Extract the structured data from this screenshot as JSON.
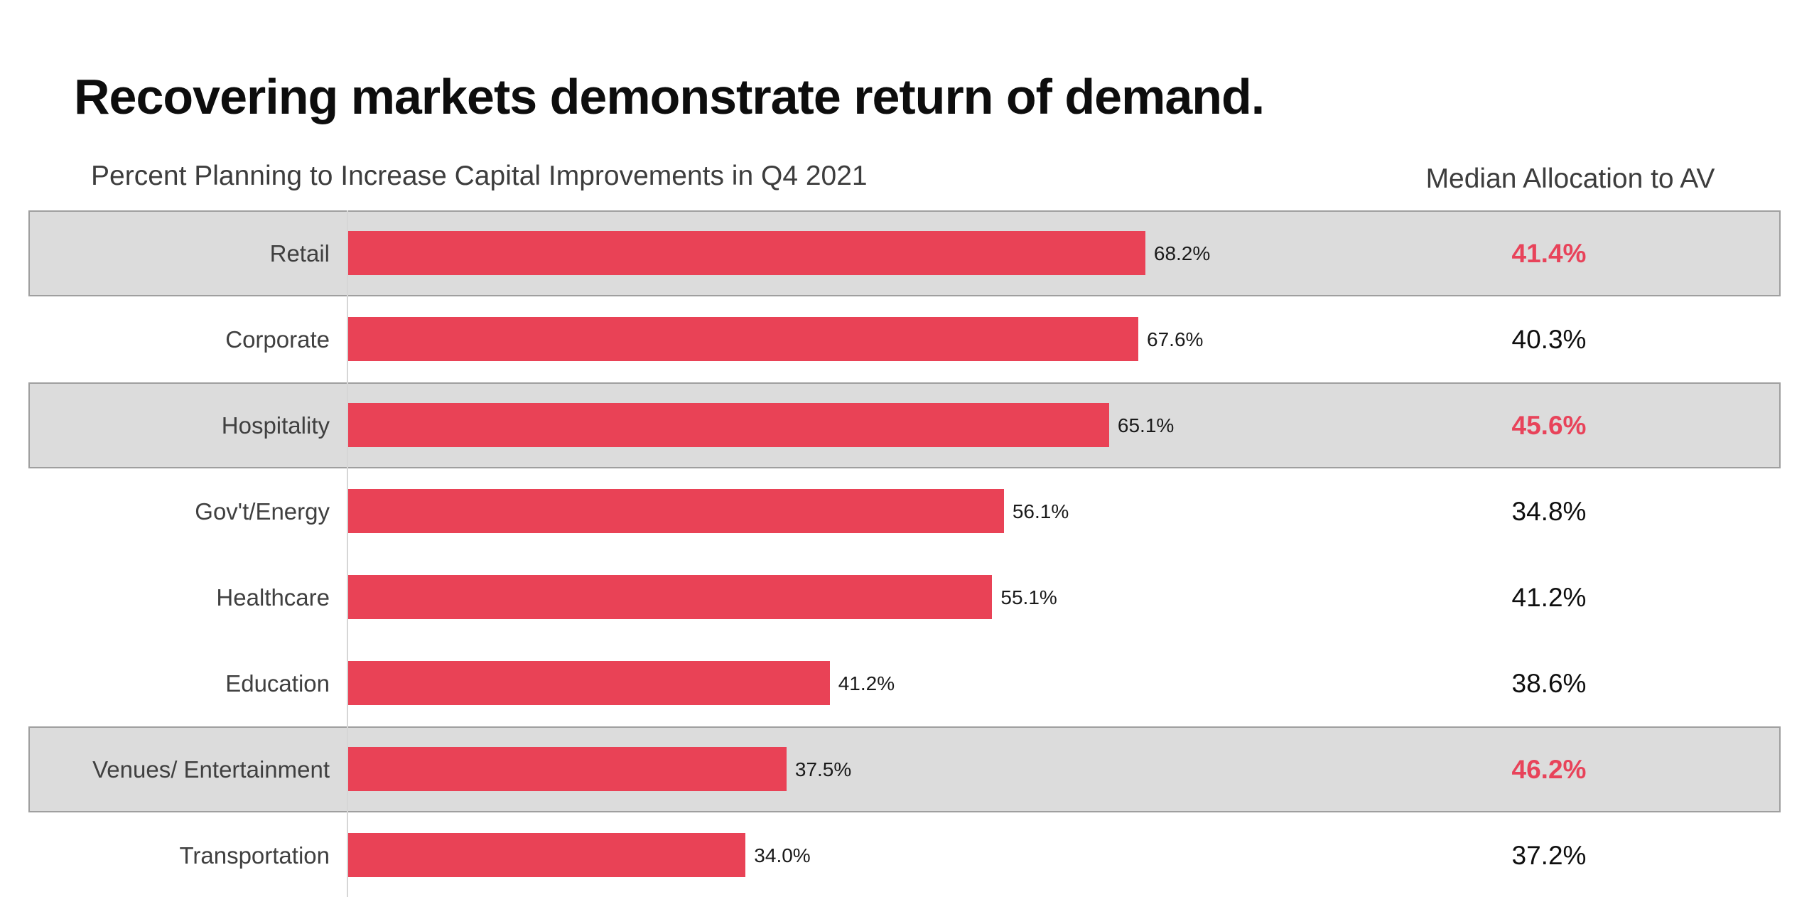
{
  "page": {
    "title": "Recovering markets demonstrate return of demand.",
    "left_header": "Percent Planning to Increase Capital Improvements in Q4 2021",
    "right_header": "Median Allocation to AV"
  },
  "colors": {
    "bar_red": "#E94256",
    "highlight_band_bg": "#DCDCDC",
    "highlight_band_border": "#9F9F9F",
    "highlight_text_red": "#E8435A",
    "title_text": "#0D0D0D",
    "header_text": "#3D3D3D",
    "category_text": "#404040",
    "value_text": "#1A1A1A",
    "axis_line": "#D6D6D6"
  },
  "chart_data": {
    "type": "bar",
    "orientation": "horizontal",
    "title": "Recovering markets demonstrate return of demand.",
    "subtitle_left": "Percent Planning to Increase Capital Improvements in Q4 2021",
    "subtitle_right": "Median Allocation to AV",
    "categories": [
      "Retail",
      "Corporate",
      "Hospitality",
      "Gov't/Energy",
      "Healthcare",
      "Education",
      "Venues/ Entertainment",
      "Transportation"
    ],
    "series": [
      {
        "name": "Percent Planning to Increase Capital Improvements in Q4 2021",
        "unit": "%",
        "values": [
          68.2,
          67.6,
          65.1,
          56.1,
          55.1,
          41.2,
          37.5,
          34.0
        ]
      },
      {
        "name": "Median Allocation to AV",
        "unit": "%",
        "values": [
          41.4,
          40.3,
          45.6,
          34.8,
          41.2,
          38.6,
          46.2,
          37.2
        ]
      }
    ],
    "highlighted_rows": [
      0,
      2,
      6
    ],
    "xlim": [
      0,
      75
    ],
    "data_labels": true,
    "grid": false,
    "legend_position": "none"
  }
}
